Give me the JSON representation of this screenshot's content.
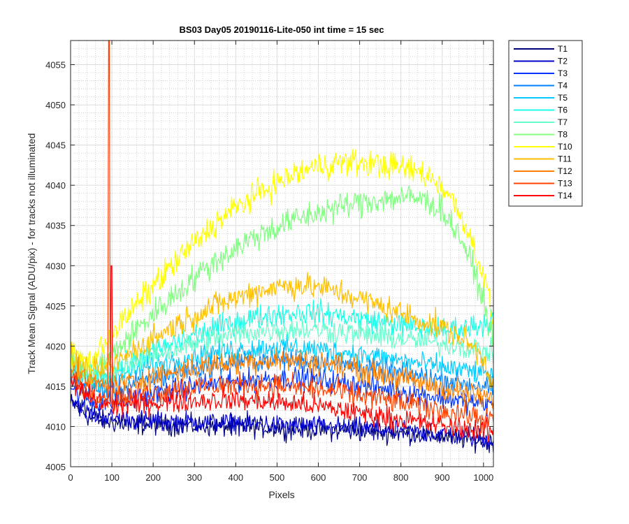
{
  "chart_data": {
    "type": "line",
    "title": "BS03 Day05 20190116-Lite-050 int time = 15 sec",
    "xlabel": "Pixels",
    "ylabel": "Track Mean Signal (ADU/pix) - for tracks not illuminated",
    "xlim": [
      0,
      1024
    ],
    "ylim": [
      4005,
      4058
    ],
    "x_ticks": [
      0,
      100,
      200,
      300,
      400,
      500,
      600,
      700,
      800,
      900,
      1000
    ],
    "y_ticks": [
      4005,
      4010,
      4015,
      4020,
      4025,
      4030,
      4035,
      4040,
      4045,
      4050,
      4055
    ],
    "grid": true,
    "minor_grid": true,
    "legend_position": "outside-right-top",
    "noise_note": "lines are noisy per-pixel traces; values below are smoothed means at sampled pixels",
    "x": [
      0,
      50,
      100,
      150,
      200,
      250,
      300,
      350,
      400,
      450,
      500,
      550,
      600,
      650,
      700,
      750,
      800,
      850,
      900,
      950,
      1000,
      1024
    ],
    "series": [
      {
        "name": "T1",
        "color": "#00007f",
        "noise": 1.1,
        "values": [
          4013,
          4011,
          4010.5,
          4010.3,
          4010.2,
          4010.2,
          4010.1,
          4010,
          4010,
          4009.9,
          4009.8,
          4009.7,
          4009.6,
          4009.5,
          4009.4,
          4009.3,
          4009.2,
          4009,
          4008.8,
          4008.5,
          4008.2,
          4008
        ]
      },
      {
        "name": "T2",
        "color": "#0000cc",
        "noise": 1.1,
        "values": [
          4013.5,
          4011.5,
          4011,
          4010.8,
          4010.7,
          4010.6,
          4010.5,
          4010.5,
          4010.4,
          4010.3,
          4010.2,
          4010.1,
          4010,
          4009.9,
          4009.8,
          4009.6,
          4009.4,
          4009.2,
          4009,
          4008.8,
          4008.5,
          4008.3
        ]
      },
      {
        "name": "T3",
        "color": "#0033ff",
        "noise": 1.2,
        "values": [
          4015,
          4013,
          4013,
          4013.5,
          4014,
          4014.5,
          4015,
          4015.3,
          4015.6,
          4015.8,
          4016,
          4016,
          4015.8,
          4015.5,
          4015.2,
          4014.8,
          4014.4,
          4014,
          4013.6,
          4013.2,
          4012.8,
          4012.6
        ]
      },
      {
        "name": "T4",
        "color": "#0080ff",
        "noise": 1.2,
        "values": [
          4016,
          4014.5,
          4014.5,
          4015.2,
          4016,
          4016.6,
          4017.2,
          4017.6,
          4018,
          4018.2,
          4018.3,
          4018.3,
          4018.1,
          4017.8,
          4017.4,
          4017,
          4016.6,
          4016.2,
          4015.8,
          4015.4,
          4015,
          4014.8
        ]
      },
      {
        "name": "T5",
        "color": "#00ccff",
        "noise": 1.2,
        "values": [
          4017,
          4015.5,
          4016,
          4016.8,
          4017.6,
          4018.2,
          4018.8,
          4019.2,
          4019.5,
          4019.7,
          4019.8,
          4019.8,
          4019.6,
          4019.3,
          4019,
          4018.6,
          4018.2,
          4017.8,
          4017.4,
          4017,
          4016.6,
          4016.4
        ]
      },
      {
        "name": "T6",
        "color": "#1affe6",
        "noise": 1.3,
        "values": [
          4017.5,
          4016,
          4016.8,
          4018,
          4019.2,
          4020.3,
          4021.3,
          4022.2,
          4023,
          4023.6,
          4024,
          4024.2,
          4024.1,
          4023.8,
          4023.4,
          4023,
          4022.6,
          4022.2,
          4022,
          4022.2,
          4022.8,
          4023.5
        ]
      },
      {
        "name": "T7",
        "color": "#66ffcc",
        "noise": 1.3,
        "values": [
          4017.5,
          4016,
          4016.8,
          4017.8,
          4018.8,
          4019.6,
          4020.3,
          4020.9,
          4021.4,
          4021.8,
          4022,
          4022.1,
          4022,
          4021.8,
          4021.5,
          4021.2,
          4020.9,
          4020.6,
          4020.3,
          4020,
          4019.5,
          4019
        ]
      },
      {
        "name": "T8",
        "color": "#80ff80",
        "noise": 1.5,
        "values": [
          4018,
          4016.5,
          4019,
          4021.5,
          4024,
          4026.3,
          4028.5,
          4030.5,
          4032.2,
          4033.7,
          4034.8,
          4035.8,
          4036.6,
          4037.3,
          4037.8,
          4038.2,
          4038.5,
          4038.3,
          4037,
          4033,
          4026,
          4020
        ]
      },
      {
        "name": "T10",
        "color": "#ffff00",
        "noise": 1.5,
        "values": [
          4019,
          4018,
          4021.5,
          4024.5,
          4027.5,
          4030.2,
          4032.8,
          4035.2,
          4037.2,
          4038.8,
          4040.3,
          4041.5,
          4042.4,
          4042.8,
          4042.8,
          4042.6,
          4042.2,
          4041.6,
          4040,
          4036,
          4029,
          4023
        ]
      },
      {
        "name": "T11",
        "color": "#ffbf00",
        "noise": 1.4,
        "values": [
          4018.5,
          4016.5,
          4017.5,
          4019.3,
          4021,
          4022.5,
          4023.8,
          4025,
          4026,
          4026.8,
          4027.4,
          4027.6,
          4027.3,
          4026.7,
          4025.9,
          4025,
          4024.1,
          4023.2,
          4022.2,
          4021,
          4018.5,
          4015
        ]
      },
      {
        "name": "T12",
        "color": "#ff8000",
        "noise": 1.3,
        "values": [
          4017,
          4015.5,
          4015,
          4015.5,
          4016.2,
          4016.8,
          4017.3,
          4017.7,
          4018,
          4018.2,
          4018.3,
          4018.2,
          4018,
          4017.6,
          4017.1,
          4016.6,
          4016,
          4015.4,
          4014.8,
          4014.2,
          4013.6,
          4013.3
        ]
      },
      {
        "name": "T13",
        "color": "#ff4000",
        "noise": 1.3,
        "values": [
          4016,
          4014.5,
          4013.5,
          4013.8,
          4014.2,
          4014.6,
          4014.9,
          4015.1,
          4015.2,
          4015.2,
          4015.1,
          4014.9,
          4014.6,
          4014.3,
          4013.9,
          4013.5,
          4013,
          4012.5,
          4012,
          4011.5,
          4011,
          4010.8
        ]
      },
      {
        "name": "T14",
        "color": "#ff0000",
        "noise": 1.2,
        "values": [
          4015.5,
          4013.5,
          4012.5,
          4012.7,
          4012.9,
          4013.1,
          4013.2,
          4013.3,
          4013.3,
          4013.2,
          4013,
          4012.8,
          4012.5,
          4012.1,
          4011.7,
          4011.3,
          4010.9,
          4010.5,
          4010.1,
          4009.8,
          4009.5,
          4009.4
        ]
      }
    ],
    "annotations": [
      {
        "series": "T13",
        "type": "spike",
        "x": 93,
        "y": 4058
      },
      {
        "series": "T14",
        "type": "spike",
        "x": 99,
        "y": 4030
      }
    ]
  }
}
